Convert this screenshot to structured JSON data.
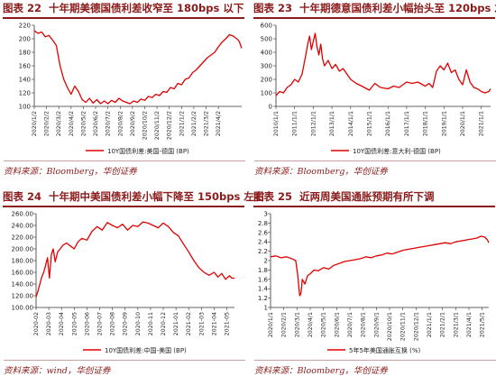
{
  "panels": [
    {
      "fig_no": "图表 22",
      "title": "十年期美德国债利差收窄至 180bps 以下",
      "source": "资料来源：Bloomberg，华创证券",
      "chart_data": {
        "type": "line",
        "ylim": [
          100,
          220
        ],
        "yticks": [
          100,
          120,
          140,
          160,
          180,
          200,
          220
        ],
        "xticks": [
          "2020/1/2",
          "2020/2/2",
          "2020/3/2",
          "2020/4/2",
          "2020/5/2",
          "2020/6/2",
          "2020/7/2",
          "2020/8/2",
          "2020/9/2",
          "2020/10/2",
          "2020/11/2",
          "2020/12/2",
          "2021/1/2",
          "2021/2/2",
          "2021/3/2",
          "2021/4/2"
        ],
        "series": [
          {
            "name": "10Y国债利差:美国-德国 (BP)",
            "color": "#e00000",
            "x_range": [
              0,
              16.9
            ],
            "x": [
              0,
              0.3,
              0.6,
              0.9,
              1.2,
              1.5,
              1.8,
              2.1,
              2.4,
              2.7,
              3.0,
              3.3,
              3.6,
              3.9,
              4.2,
              4.5,
              4.8,
              5.1,
              5.4,
              5.7,
              6.0,
              6.3,
              6.6,
              6.9,
              7.2,
              7.5,
              7.8,
              8.1,
              8.4,
              8.7,
              9.0,
              9.3,
              9.6,
              9.9,
              10.2,
              10.5,
              10.8,
              11.1,
              11.4,
              11.7,
              12.0,
              12.3,
              12.6,
              12.9,
              13.2,
              13.5,
              13.8,
              14.1,
              14.4,
              14.7,
              15.0,
              15.3,
              15.6,
              15.9,
              16.2,
              16.5,
              16.7,
              16.9
            ],
            "values": [
              212,
              208,
              210,
              203,
              205,
              198,
              190,
              160,
              140,
              128,
              118,
              130,
              122,
              110,
              106,
              112,
              105,
              110,
              104,
              108,
              104,
              109,
              106,
              112,
              108,
              106,
              104,
              108,
              106,
              111,
              109,
              115,
              113,
              118,
              116,
              122,
              121,
              128,
              126,
              134,
              132,
              140,
              142,
              150,
              154,
              160,
              166,
              172,
              176,
              180,
              188,
              195,
              200,
              206,
              204,
              200,
              196,
              186
            ]
          }
        ]
      }
    },
    {
      "fig_no": "图表 23",
      "title": "十年期德意国债利差小幅抬头至 120bps 左右",
      "source": "资料来源：Bloomberg，华创证券",
      "chart_data": {
        "type": "line",
        "ylim": [
          0,
          600
        ],
        "yticks": [
          0,
          100,
          200,
          300,
          400,
          500,
          600
        ],
        "xticks": [
          "2010/1/1",
          "2011/1/1",
          "2012/1/1",
          "2013/1/1",
          "2014/1/1",
          "2015/1/1",
          "2016/1/1",
          "2017/1/1",
          "2018/1/1",
          "2019/1/1",
          "2020/1/1",
          "2021/1/1"
        ],
        "series": [
          {
            "name": "10Y国债利差:意大利-德国 (BP)",
            "color": "#e00000",
            "x_range": [
              0,
              11.5
            ],
            "x": [
              0,
              0.2,
              0.4,
              0.6,
              0.8,
              1.0,
              1.2,
              1.4,
              1.6,
              1.7,
              1.8,
              1.9,
              2.0,
              2.1,
              2.2,
              2.3,
              2.4,
              2.5,
              2.6,
              2.8,
              3.0,
              3.2,
              3.4,
              3.6,
              3.8,
              4.0,
              4.3,
              4.6,
              5.0,
              5.3,
              5.6,
              6.0,
              6.3,
              6.6,
              7.0,
              7.3,
              7.6,
              8.0,
              8.2,
              8.4,
              8.6,
              8.8,
              9.0,
              9.2,
              9.4,
              9.6,
              9.8,
              10.0,
              10.2,
              10.4,
              10.6,
              10.8,
              11.0,
              11.2,
              11.4,
              11.5
            ],
            "values": [
              80,
              110,
              100,
              140,
              160,
              200,
              180,
              240,
              380,
              460,
              520,
              420,
              480,
              540,
              440,
              380,
              460,
              350,
              300,
              340,
              280,
              310,
              260,
              280,
              240,
              200,
              170,
              150,
              120,
              170,
              140,
              130,
              150,
              140,
              180,
              170,
              180,
              150,
              170,
              140,
              260,
              300,
              270,
              320,
              250,
              270,
              200,
              160,
              270,
              180,
              140,
              130,
              110,
              100,
              110,
              130
            ]
          }
        ]
      }
    },
    {
      "fig_no": "图表 24",
      "title": "十年期中美国债利差小幅下降至 150bps 左右",
      "source": "资料来源：wind，华创证券",
      "chart_data": {
        "type": "line",
        "ylim": [
          100,
          260
        ],
        "yticks": [
          "100.00",
          "120.00",
          "140.00",
          "160.00",
          "180.00",
          "200.00",
          "220.00",
          "240.00",
          "260.00"
        ],
        "xticks": [
          "2020-02",
          "2020-03",
          "2020-04",
          "2020-05",
          "2020-06",
          "2020-07",
          "2020-08",
          "2020-09",
          "2020-10",
          "2020-11",
          "2020-12",
          "2021-01",
          "2021-02",
          "2021-03",
          "2021-04",
          "2021-05"
        ],
        "series": [
          {
            "name": "10Y国债利差:中国-美国 (BP)",
            "color": "#e00000",
            "x_range": [
              0,
              15.6
            ],
            "x": [
              0,
              0.15,
              0.3,
              0.45,
              0.6,
              0.75,
              0.9,
              1.05,
              1.2,
              1.35,
              1.5,
              1.7,
              1.9,
              2.1,
              2.4,
              2.7,
              3.0,
              3.3,
              3.6,
              4.0,
              4.4,
              4.8,
              5.2,
              5.6,
              6.0,
              6.4,
              6.8,
              7.2,
              7.6,
              8.0,
              8.4,
              8.8,
              9.2,
              9.6,
              10.0,
              10.4,
              10.8,
              11.2,
              11.6,
              12.0,
              12.4,
              12.8,
              13.2,
              13.6,
              14.0,
              14.3,
              14.6,
              14.9,
              15.2,
              15.4,
              15.6
            ],
            "values": [
              118,
              128,
              140,
              152,
              160,
              172,
              185,
              150,
              190,
              200,
              178,
              195,
              200,
              206,
              210,
              205,
              200,
              212,
              218,
              215,
              230,
              238,
              232,
              245,
              240,
              236,
              242,
              232,
              240,
              238,
              246,
              244,
              240,
              236,
              244,
              238,
              228,
              222,
              208,
              195,
              180,
              168,
              160,
              155,
              160,
              152,
              158,
              148,
              154,
              150,
              150
            ]
          }
        ]
      }
    },
    {
      "fig_no": "图表 25",
      "title": "近两周美国通胀预期有所下调",
      "source": "资料来源：Bloomberg，华创证券",
      "chart_data": {
        "type": "line",
        "ylim": [
          1,
          3
        ],
        "yticks": [
          "1",
          "1.2",
          "1.4",
          "1.6",
          "1.8",
          "2",
          "2.2",
          "2.4",
          "2.6",
          "2.8",
          "3"
        ],
        "xticks": [
          "2020/1/1",
          "2020/2/1",
          "2020/3/1",
          "2020/4/1",
          "2020/5/1",
          "2020/6/1",
          "2020/7/1",
          "2020/8/1",
          "2020/9/1",
          "2020/10/1",
          "2020/11/1",
          "2020/12/1",
          "2021/1/1",
          "2021/2/1",
          "2021/3/1",
          "2021/4/1",
          "2021/5/1"
        ],
        "series": [
          {
            "name": "5年5年美国通胀互换 (%)",
            "color": "#e00000",
            "x_range": [
              0,
              16.5
            ],
            "x": [
              0,
              0.4,
              0.8,
              1.2,
              1.6,
              1.9,
              2.05,
              2.2,
              2.3,
              2.4,
              2.6,
              2.8,
              3.0,
              3.3,
              3.6,
              4.0,
              4.4,
              4.8,
              5.2,
              5.6,
              6.0,
              6.4,
              6.8,
              7.2,
              7.6,
              8.0,
              8.4,
              8.8,
              9.2,
              9.6,
              10.0,
              10.4,
              10.8,
              11.2,
              11.6,
              12.0,
              12.4,
              12.8,
              13.2,
              13.6,
              14.0,
              14.4,
              14.8,
              15.2,
              15.6,
              15.9,
              16.2,
              16.4,
              16.5
            ],
            "values": [
              2.08,
              2.1,
              2.06,
              2.08,
              2.04,
              2.0,
              1.7,
              1.25,
              1.3,
              1.6,
              1.5,
              1.68,
              1.72,
              1.8,
              1.78,
              1.85,
              1.82,
              1.9,
              1.94,
              1.98,
              2.0,
              2.02,
              2.04,
              2.08,
              2.06,
              2.1,
              2.12,
              2.16,
              2.14,
              2.18,
              2.22,
              2.24,
              2.26,
              2.28,
              2.3,
              2.32,
              2.34,
              2.36,
              2.38,
              2.36,
              2.4,
              2.42,
              2.44,
              2.46,
              2.48,
              2.52,
              2.5,
              2.44,
              2.38
            ]
          }
        ]
      }
    }
  ]
}
